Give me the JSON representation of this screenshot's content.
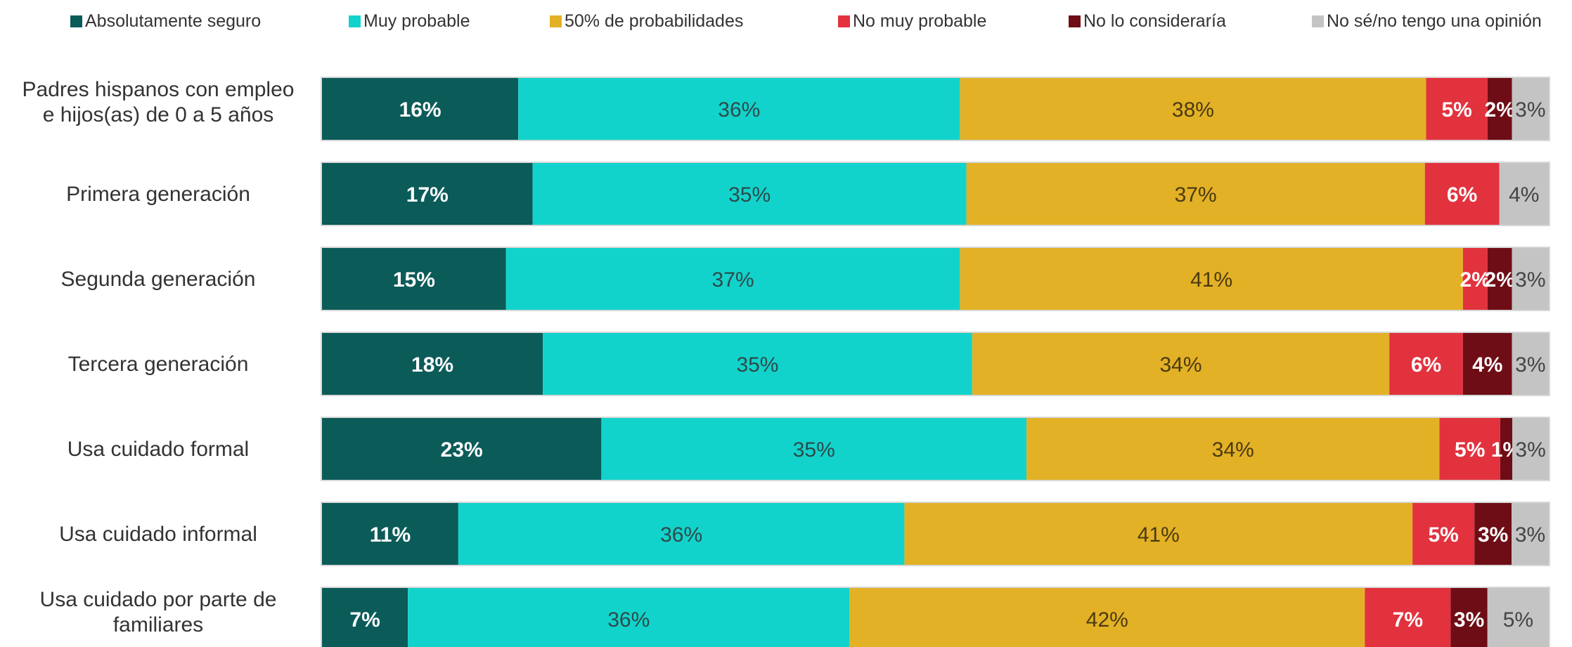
{
  "chart_data": {
    "type": "bar",
    "orientation": "horizontal",
    "stacked": "percent",
    "title": "",
    "xlabel": "",
    "ylabel": "",
    "xlim": [
      0,
      100
    ],
    "grid": false,
    "legend_position": "top",
    "categories": [
      "Padres hispanos con empleo e hijos(as) de 0 a 5 años",
      "Primera generación",
      "Segunda generación",
      "Tercera generación",
      "Usa cuidado formal",
      "Usa cuidado informal",
      "Usa cuidado por parte de familiares"
    ],
    "series": [
      {
        "name": "Absolutamente seguro",
        "color": "#0b5b59",
        "label_color": "#ffffff",
        "values": [
          16,
          17,
          15,
          18,
          23,
          11,
          7
        ]
      },
      {
        "name": "Muy probable",
        "color": "#12d3cb",
        "label_color": "#2d4a4a",
        "values": [
          36,
          35,
          37,
          35,
          35,
          36,
          36
        ]
      },
      {
        "name": "50% de probabilidades",
        "color": "#e3b126",
        "label_color": "#4a3a10",
        "values": [
          38,
          37,
          41,
          34,
          34,
          41,
          42
        ]
      },
      {
        "name": "No muy probable",
        "color": "#e2323e",
        "label_color": "#ffffff",
        "values": [
          5,
          6,
          2,
          6,
          5,
          5,
          7
        ]
      },
      {
        "name": "No lo consideraría",
        "color": "#6e0d16",
        "label_color": "#ffffff",
        "values": [
          2,
          0,
          2,
          4,
          1,
          3,
          3
        ]
      },
      {
        "name": "No sé/no tengo una opinión",
        "color": "#c4c4c4",
        "label_color": "#444444",
        "values": [
          3,
          4,
          3,
          3,
          3,
          3,
          5
        ]
      }
    ]
  }
}
